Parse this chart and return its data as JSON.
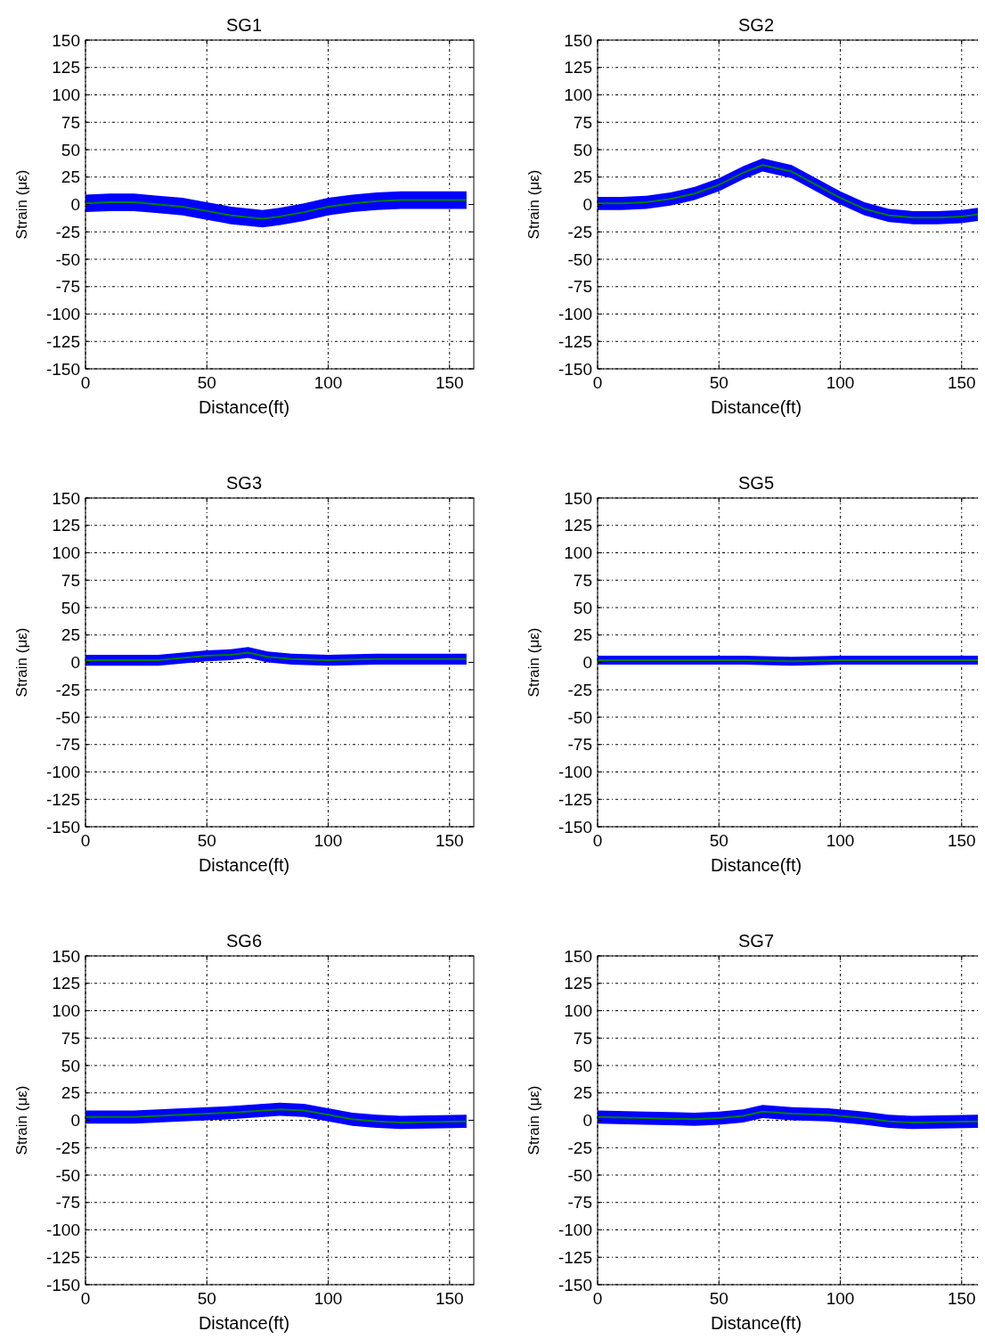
{
  "chart_data": [
    {
      "type": "line",
      "title": "SG1",
      "xlabel": "Distance(ft)",
      "ylabel": "Strain (με)",
      "xlim": [
        0,
        160
      ],
      "ylim": [
        -150,
        150
      ],
      "xticks": [
        0,
        50,
        100,
        150
      ],
      "yticks": [
        -150,
        -125,
        -100,
        -75,
        -50,
        -25,
        0,
        25,
        50,
        75,
        100,
        125,
        150
      ],
      "grid": true,
      "x": [
        0,
        10,
        20,
        30,
        40,
        50,
        60,
        73,
        80,
        90,
        100,
        110,
        120,
        130,
        140,
        157
      ],
      "series": [
        {
          "color": "#008000",
          "values": [
            1,
            2,
            2,
            0,
            -2,
            -6,
            -10,
            -13,
            -11,
            -7,
            -2,
            1,
            3,
            4,
            4,
            4
          ],
          "lower": [
            -7,
            -6,
            -6,
            -8,
            -10,
            -14,
            -18,
            -21,
            -19,
            -15,
            -10,
            -7,
            -5,
            -4,
            -4,
            -4
          ],
          "upper": [
            9,
            10,
            10,
            8,
            6,
            2,
            -2,
            -5,
            -3,
            1,
            6,
            9,
            11,
            12,
            12,
            12
          ]
        }
      ]
    },
    {
      "type": "line",
      "title": "SG2",
      "xlabel": "Distance(ft)",
      "ylabel": "Strain (με)",
      "xlim": [
        0,
        160
      ],
      "ylim": [
        -150,
        150
      ],
      "xticks": [
        0,
        50,
        100,
        150
      ],
      "yticks": [
        -150,
        -125,
        -100,
        -75,
        -50,
        -25,
        0,
        25,
        50,
        75,
        100,
        125,
        150
      ],
      "grid": true,
      "x": [
        0,
        10,
        20,
        30,
        40,
        50,
        60,
        68,
        80,
        90,
        100,
        110,
        120,
        130,
        140,
        150,
        157
      ],
      "series": [
        {
          "color": "#008000",
          "values": [
            1,
            1,
            2,
            5,
            10,
            18,
            29,
            36,
            30,
            18,
            6,
            -4,
            -10,
            -12,
            -12,
            -11,
            -9
          ],
          "lower": [
            -5,
            -5,
            -4,
            -1,
            4,
            12,
            23,
            30,
            24,
            12,
            0,
            -10,
            -16,
            -18,
            -18,
            -17,
            -15
          ],
          "upper": [
            7,
            7,
            8,
            11,
            16,
            24,
            35,
            42,
            36,
            24,
            12,
            2,
            -4,
            -6,
            -6,
            -5,
            -3
          ]
        }
      ]
    },
    {
      "type": "line",
      "title": "SG3",
      "xlabel": "Distance(ft)",
      "ylabel": "Strain (με)",
      "xlim": [
        0,
        160
      ],
      "ylim": [
        -150,
        150
      ],
      "xticks": [
        0,
        50,
        100,
        150
      ],
      "yticks": [
        -150,
        -125,
        -100,
        -75,
        -50,
        -25,
        0,
        25,
        50,
        75,
        100,
        125,
        150
      ],
      "grid": true,
      "x": [
        0,
        15,
        30,
        40,
        50,
        60,
        67,
        75,
        85,
        100,
        120,
        140,
        157
      ],
      "series": [
        {
          "color": "#008000",
          "values": [
            2,
            2,
            2,
            4,
            6,
            7,
            9,
            5,
            3,
            2,
            3,
            3,
            3
          ],
          "lower": [
            -3,
            -3,
            -3,
            -1,
            1,
            2,
            4,
            0,
            -2,
            -3,
            -2,
            -2,
            -2
          ],
          "upper": [
            7,
            7,
            7,
            9,
            11,
            12,
            14,
            10,
            8,
            7,
            8,
            8,
            8
          ]
        }
      ]
    },
    {
      "type": "line",
      "title": "SG5",
      "xlabel": "Distance(ft)",
      "ylabel": "Strain (με)",
      "xlim": [
        0,
        160
      ],
      "ylim": [
        -150,
        150
      ],
      "xticks": [
        0,
        50,
        100,
        150
      ],
      "yticks": [
        -150,
        -125,
        -100,
        -75,
        -50,
        -25,
        0,
        25,
        50,
        75,
        100,
        125,
        150
      ],
      "grid": true,
      "x": [
        0,
        20,
        40,
        60,
        80,
        100,
        120,
        140,
        157
      ],
      "series": [
        {
          "color": "#008000",
          "values": [
            2,
            2,
            2,
            2,
            1,
            2,
            2,
            2,
            2
          ],
          "lower": [
            -2,
            -2,
            -2,
            -2,
            -3,
            -2,
            -2,
            -2,
            -2
          ],
          "upper": [
            6,
            6,
            6,
            6,
            5,
            6,
            6,
            6,
            6
          ]
        }
      ]
    },
    {
      "type": "line",
      "title": "SG6",
      "xlabel": "Distance(ft)",
      "ylabel": "Strain (με)",
      "xlim": [
        0,
        160
      ],
      "ylim": [
        -150,
        150
      ],
      "xticks": [
        0,
        50,
        100,
        150
      ],
      "yticks": [
        -150,
        -125,
        -100,
        -75,
        -50,
        -25,
        0,
        25,
        50,
        75,
        100,
        125,
        150
      ],
      "grid": true,
      "x": [
        0,
        20,
        40,
        60,
        80,
        90,
        100,
        110,
        120,
        130,
        157
      ],
      "series": [
        {
          "color": "#008000",
          "values": [
            3,
            3,
            5,
            7,
            10,
            9,
            5,
            1,
            -1,
            -2,
            -1
          ],
          "lower": [
            -3,
            -3,
            -1,
            1,
            4,
            3,
            -1,
            -5,
            -7,
            -8,
            -7
          ],
          "upper": [
            9,
            9,
            11,
            13,
            16,
            15,
            11,
            7,
            5,
            4,
            5
          ]
        }
      ]
    },
    {
      "type": "line",
      "title": "SG7",
      "xlabel": "Distance(ft)",
      "ylabel": "Strain (με)",
      "xlim": [
        0,
        160
      ],
      "ylim": [
        -150,
        150
      ],
      "xticks": [
        0,
        50,
        100,
        150
      ],
      "yticks": [
        -150,
        -125,
        -100,
        -75,
        -50,
        -25,
        0,
        25,
        50,
        75,
        100,
        125,
        150
      ],
      "grid": true,
      "x": [
        0,
        20,
        40,
        50,
        60,
        68,
        80,
        95,
        110,
        120,
        130,
        157
      ],
      "series": [
        {
          "color": "#008000",
          "values": [
            3,
            2,
            1,
            2,
            4,
            8,
            6,
            5,
            2,
            -1,
            -2,
            -1
          ],
          "lower": [
            -3,
            -4,
            -5,
            -4,
            -2,
            2,
            0,
            -1,
            -4,
            -7,
            -8,
            -7
          ],
          "upper": [
            9,
            8,
            7,
            8,
            10,
            14,
            12,
            11,
            8,
            5,
            4,
            5
          ]
        }
      ]
    }
  ]
}
